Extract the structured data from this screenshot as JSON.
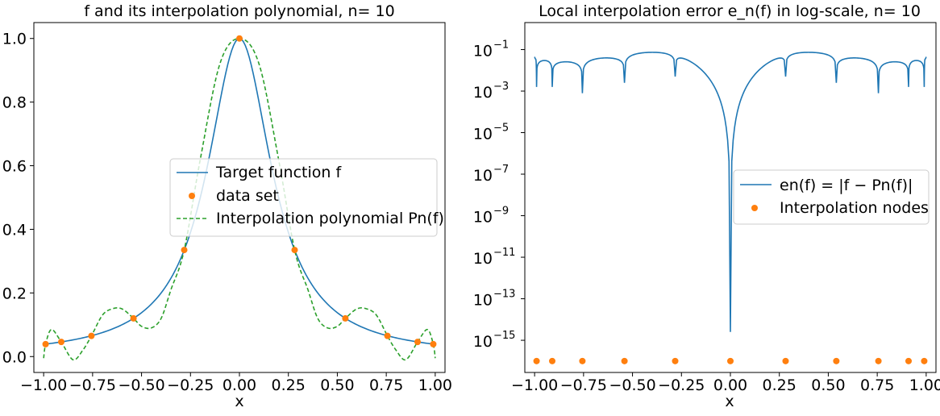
{
  "colors": {
    "target": "#1f77b4",
    "nodes": "#ff7f0e",
    "poly": "#2ca02c",
    "error": "#1f77b4"
  },
  "chart_data": [
    {
      "type": "line",
      "title": "f and its interpolation polynomial, n= 10",
      "xlabel": "x",
      "ylabel": "",
      "xlim": [
        -1.05,
        1.05
      ],
      "ylim": [
        -0.05,
        1.05
      ],
      "xticks": [
        -1.0,
        -0.75,
        -0.5,
        -0.25,
        0.0,
        0.25,
        0.5,
        0.75,
        1.0
      ],
      "xtick_labels": [
        "−1.00",
        "−0.75",
        "−0.50",
        "−0.25",
        "0.00",
        "0.25",
        "0.50",
        "0.75",
        "1.00"
      ],
      "yticks": [
        0.0,
        0.2,
        0.4,
        0.6,
        0.8,
        1.0
      ],
      "ytick_labels": [
        "0.0",
        "0.2",
        "0.4",
        "0.6",
        "0.8",
        "1.0"
      ],
      "legend_position": "center-right",
      "grid": false,
      "series": [
        {
          "name": "Target function f",
          "style": "solid",
          "x": [
            -1.0,
            -0.9,
            -0.8,
            -0.7,
            -0.6,
            -0.5,
            -0.4,
            -0.3,
            -0.2,
            -0.1,
            0.0,
            0.1,
            0.2,
            0.3,
            0.4,
            0.5,
            0.6,
            0.7,
            0.8,
            0.9,
            1.0
          ],
          "y": [
            0.038,
            0.047,
            0.059,
            0.075,
            0.1,
            0.138,
            0.2,
            0.308,
            0.5,
            0.8,
            1.0,
            0.8,
            0.5,
            0.308,
            0.2,
            0.138,
            0.1,
            0.075,
            0.059,
            0.047,
            0.038
          ]
        },
        {
          "name": "data set",
          "style": "markers",
          "x": [
            -0.99,
            -0.91,
            -0.756,
            -0.541,
            -0.282,
            0.0,
            0.282,
            0.541,
            0.756,
            0.91,
            0.99
          ],
          "y": [
            0.039,
            0.046,
            0.065,
            0.12,
            0.335,
            1.0,
            0.335,
            0.12,
            0.065,
            0.046,
            0.039
          ]
        },
        {
          "name": "Interpolation polynomial Pn(f)",
          "style": "dashed",
          "x": [
            -1.0,
            -0.99,
            -0.96,
            -0.91,
            -0.85,
            -0.8,
            -0.756,
            -0.7,
            -0.65,
            -0.6,
            -0.541,
            -0.5,
            -0.45,
            -0.4,
            -0.35,
            -0.282,
            -0.2,
            -0.1,
            0.0,
            0.1,
            0.2,
            0.282,
            0.35,
            0.4,
            0.45,
            0.5,
            0.541,
            0.6,
            0.65,
            0.7,
            0.756,
            0.8,
            0.85,
            0.91,
            0.96,
            0.99,
            1.0
          ],
          "y": [
            -0.005,
            0.039,
            0.085,
            0.046,
            -0.01,
            0.02,
            0.065,
            0.13,
            0.15,
            0.15,
            0.12,
            0.095,
            0.09,
            0.12,
            0.21,
            0.335,
            0.62,
            0.92,
            1.0,
            0.92,
            0.62,
            0.335,
            0.21,
            0.12,
            0.09,
            0.095,
            0.12,
            0.15,
            0.15,
            0.13,
            0.065,
            0.02,
            -0.01,
            0.046,
            0.085,
            0.039,
            -0.005
          ]
        }
      ]
    },
    {
      "type": "line",
      "title": "Local interpolation error e_n(f) in log-scale, n= 10",
      "xlabel": "x",
      "ylabel": "",
      "yscale": "log",
      "xlim": [
        -1.05,
        1.05
      ],
      "ylim": [
        1e-16,
        1
      ],
      "xticks": [
        -1.0,
        -0.75,
        -0.5,
        -0.25,
        0.0,
        0.25,
        0.5,
        0.75,
        1.0
      ],
      "xtick_labels": [
        "−1.00",
        "−0.75",
        "−0.50",
        "−0.25",
        "0.00",
        "0.25",
        "0.50",
        "0.75",
        "1.00"
      ],
      "yticks": [
        1e-15,
        1e-13,
        1e-11,
        1e-09,
        1e-07,
        1e-05,
        0.001,
        0.1
      ],
      "ytick_exponents": [
        "−15",
        "−13",
        "−11",
        "−9",
        "−7",
        "−5",
        "−3",
        "−1"
      ],
      "legend_position": "center-right",
      "grid": false,
      "series": [
        {
          "name": "en(f) = |f − Pn(f)|",
          "style": "solid",
          "nodes_x": [
            -0.99,
            -0.91,
            -0.756,
            -0.541,
            -0.282,
            0.0,
            0.282,
            0.541,
            0.756,
            0.91,
            0.99
          ],
          "dip_log10": [
            -2.8,
            -2.8,
            -3.1,
            -2.6,
            -2.3,
            -14.6,
            -2.3,
            -2.6,
            -3.1,
            -2.8,
            -2.8
          ],
          "peak_log10": [
            -1.35,
            -1.45,
            -1.4,
            -1.2,
            -0.95,
            -0.95,
            -0.95,
            -1.2,
            -1.4,
            -1.45,
            -1.35
          ],
          "endpoint_log10": -1.35
        },
        {
          "name": "Interpolation nodes",
          "style": "markers",
          "x": [
            -0.99,
            -0.91,
            -0.756,
            -0.541,
            -0.282,
            0.0,
            0.282,
            0.541,
            0.756,
            0.91,
            0.99
          ],
          "y": [
            1e-16,
            1e-16,
            1e-16,
            1e-16,
            1e-16,
            1e-16,
            1e-16,
            1e-16,
            1e-16,
            1e-16,
            1e-16
          ]
        }
      ]
    }
  ]
}
